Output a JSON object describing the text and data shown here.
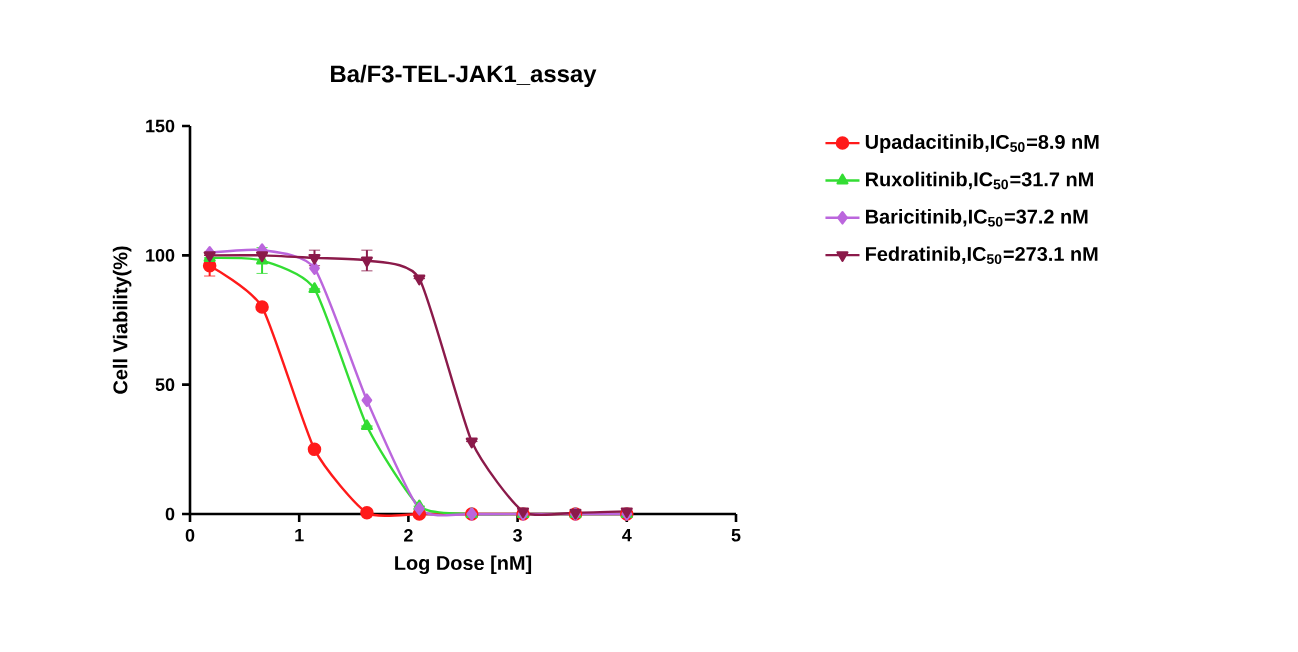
{
  "chart_data": {
    "type": "line",
    "title": "Ba/F3-TEL-JAK1_assay",
    "xlabel": "Log Dose [nM]",
    "ylabel": "Cell Viability(%)",
    "xlim": [
      0,
      5
    ],
    "xticks": [
      0,
      1,
      2,
      3,
      4,
      5
    ],
    "ylim": [
      0,
      150
    ],
    "yticks": [
      0,
      50,
      100,
      150
    ],
    "grid": false,
    "legend": "right",
    "line_style": "solid",
    "series": [
      {
        "name": "Upadacitinib,IC$_{50}$=8.9 nM",
        "color": "#ff1a1a",
        "marker": "circle",
        "x": [
          0.18,
          0.66,
          1.14,
          1.62,
          2.1,
          2.58,
          3.05,
          3.53,
          4.0
        ],
        "values": [
          96,
          80,
          25,
          0.5,
          0,
          0,
          0,
          0,
          0
        ],
        "errors": [
          4,
          null,
          null,
          null,
          null,
          null,
          null,
          null,
          null
        ]
      },
      {
        "name": "Ruxolitinib,IC$_{50}$=31.7 nM",
        "color": "#33dd33",
        "marker": "triangle",
        "x": [
          0.18,
          0.66,
          1.14,
          1.62,
          2.1,
          2.58,
          3.05,
          3.53,
          4.0
        ],
        "values": [
          99,
          98,
          87,
          34,
          3,
          0,
          0,
          0,
          0
        ],
        "errors": [
          null,
          5,
          null,
          null,
          null,
          null,
          null,
          null,
          null
        ]
      },
      {
        "name": "Baricitinib,IC$_{50}$=37.2 nM",
        "color": "#bb66dd",
        "marker": "diamond",
        "x": [
          0.18,
          0.66,
          1.14,
          1.62,
          2.1,
          2.58,
          3.05,
          3.53,
          4.0
        ],
        "values": [
          101,
          102,
          95,
          44,
          2,
          0,
          0,
          0,
          0
        ]
      },
      {
        "name": "Fedratinib,IC$_{50}$=273.1 nM",
        "color": "#8b1a4a",
        "marker": "triangle-down",
        "x": [
          0.18,
          0.66,
          1.14,
          1.62,
          2.1,
          2.58,
          3.05,
          3.53,
          4.0
        ],
        "values": [
          100,
          100,
          99,
          98,
          91,
          28,
          1,
          0.5,
          1
        ],
        "errors": [
          null,
          null,
          3,
          4,
          null,
          null,
          null,
          null,
          null
        ]
      }
    ]
  }
}
